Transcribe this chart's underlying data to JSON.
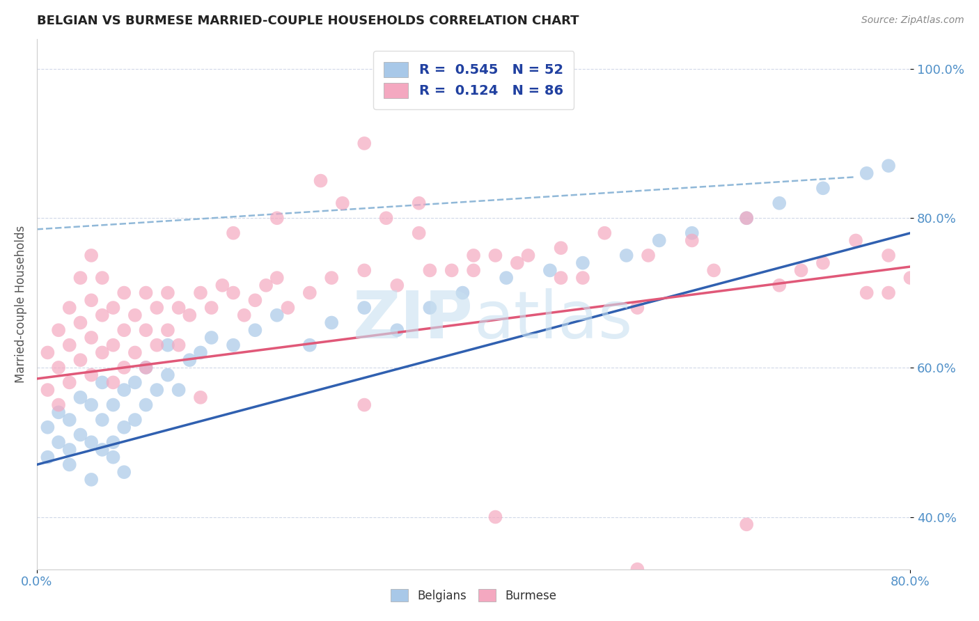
{
  "title": "BELGIAN VS BURMESE MARRIED-COUPLE HOUSEHOLDS CORRELATION CHART",
  "source": "Source: ZipAtlas.com",
  "ylabel": "Married-couple Households",
  "belgian_color": "#a8c8e8",
  "burmese_color": "#f4a8c0",
  "belgian_line_color": "#3060b0",
  "burmese_line_color": "#e05878",
  "dashed_line_color": "#90b8d8",
  "watermark_color": "#c8e0f0",
  "axis_label_color": "#5090c8",
  "legend_text_color": "#2040a0",
  "xmin": 0.0,
  "xmax": 0.8,
  "ymin": 0.33,
  "ymax": 1.04,
  "legend_label_belgians": "Belgians",
  "legend_label_burmese": "Burmese",
  "bel_line_x0": 0.0,
  "bel_line_y0": 0.47,
  "bel_line_x1": 0.8,
  "bel_line_y1": 0.78,
  "bur_line_x0": 0.0,
  "bur_line_y0": 0.585,
  "bur_line_x1": 0.8,
  "bur_line_y1": 0.735,
  "dash_line_x0": 0.0,
  "dash_line_y0": 0.785,
  "dash_line_x1": 0.75,
  "dash_line_y1": 0.855,
  "belgians_x": [
    0.01,
    0.01,
    0.02,
    0.02,
    0.03,
    0.03,
    0.03,
    0.04,
    0.04,
    0.05,
    0.05,
    0.05,
    0.06,
    0.06,
    0.06,
    0.07,
    0.07,
    0.07,
    0.08,
    0.08,
    0.08,
    0.09,
    0.09,
    0.1,
    0.1,
    0.11,
    0.12,
    0.12,
    0.13,
    0.14,
    0.15,
    0.16,
    0.18,
    0.2,
    0.22,
    0.25,
    0.27,
    0.3,
    0.33,
    0.36,
    0.39,
    0.43,
    0.47,
    0.5,
    0.54,
    0.57,
    0.6,
    0.65,
    0.68,
    0.72,
    0.76,
    0.78
  ],
  "belgians_y": [
    0.52,
    0.48,
    0.5,
    0.54,
    0.49,
    0.53,
    0.47,
    0.51,
    0.56,
    0.5,
    0.45,
    0.55,
    0.49,
    0.53,
    0.58,
    0.5,
    0.55,
    0.48,
    0.52,
    0.57,
    0.46,
    0.53,
    0.58,
    0.55,
    0.6,
    0.57,
    0.59,
    0.63,
    0.57,
    0.61,
    0.62,
    0.64,
    0.63,
    0.65,
    0.67,
    0.63,
    0.66,
    0.68,
    0.65,
    0.68,
    0.7,
    0.72,
    0.73,
    0.74,
    0.75,
    0.77,
    0.78,
    0.8,
    0.82,
    0.84,
    0.86,
    0.87
  ],
  "burmese_x": [
    0.01,
    0.01,
    0.02,
    0.02,
    0.02,
    0.03,
    0.03,
    0.03,
    0.04,
    0.04,
    0.04,
    0.05,
    0.05,
    0.05,
    0.05,
    0.06,
    0.06,
    0.06,
    0.07,
    0.07,
    0.07,
    0.08,
    0.08,
    0.08,
    0.09,
    0.09,
    0.1,
    0.1,
    0.1,
    0.11,
    0.11,
    0.12,
    0.12,
    0.13,
    0.13,
    0.14,
    0.15,
    0.16,
    0.17,
    0.18,
    0.19,
    0.2,
    0.21,
    0.22,
    0.23,
    0.25,
    0.27,
    0.3,
    0.33,
    0.36,
    0.4,
    0.44,
    0.48,
    0.52,
    0.56,
    0.6,
    0.65,
    0.7,
    0.75,
    0.78,
    0.35,
    0.4,
    0.45,
    0.5,
    0.28,
    0.32,
    0.38,
    0.15,
    0.18,
    0.22,
    0.26,
    0.3,
    0.35,
    0.42,
    0.48,
    0.55,
    0.62,
    0.68,
    0.72,
    0.76,
    0.8,
    0.42,
    0.55,
    0.65,
    0.78,
    0.3
  ],
  "burmese_y": [
    0.57,
    0.62,
    0.55,
    0.6,
    0.65,
    0.58,
    0.63,
    0.68,
    0.61,
    0.66,
    0.72,
    0.59,
    0.64,
    0.69,
    0.75,
    0.62,
    0.67,
    0.72,
    0.58,
    0.63,
    0.68,
    0.6,
    0.65,
    0.7,
    0.62,
    0.67,
    0.6,
    0.65,
    0.7,
    0.63,
    0.68,
    0.65,
    0.7,
    0.63,
    0.68,
    0.67,
    0.7,
    0.68,
    0.71,
    0.7,
    0.67,
    0.69,
    0.71,
    0.72,
    0.68,
    0.7,
    0.72,
    0.73,
    0.71,
    0.73,
    0.75,
    0.74,
    0.76,
    0.78,
    0.75,
    0.77,
    0.8,
    0.73,
    0.77,
    0.75,
    0.78,
    0.73,
    0.75,
    0.72,
    0.82,
    0.8,
    0.73,
    0.56,
    0.78,
    0.8,
    0.85,
    0.9,
    0.82,
    0.75,
    0.72,
    0.68,
    0.73,
    0.71,
    0.74,
    0.7,
    0.72,
    0.4,
    0.33,
    0.39,
    0.7,
    0.55
  ]
}
